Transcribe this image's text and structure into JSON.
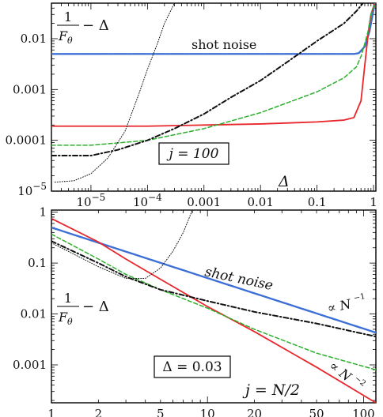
{
  "chart_data": [
    {
      "type": "line",
      "panel": "top",
      "x_scale": "log",
      "y_scale": "log",
      "xlim": [
        2e-06,
        1.1
      ],
      "ylim": [
        1e-05,
        0.05
      ],
      "xlabel": "Δ",
      "ylabel_numerator": "1",
      "ylabel_denominator": "F",
      "ylabel_subscript": "θ",
      "ylabel_suffix": "− Δ",
      "x_ticks": [
        {
          "value": 1e-05,
          "base": "10",
          "exp": "−5"
        },
        {
          "value": 0.0001,
          "base": "10",
          "exp": "−4"
        },
        {
          "value": 0.001,
          "label": "0.001"
        },
        {
          "value": 0.01,
          "label": "0.01"
        },
        {
          "value": 0.1,
          "label": "0.1"
        },
        {
          "value": 1,
          "label": "1"
        }
      ],
      "y_ticks": [
        {
          "value": 0.01,
          "label": "0.01"
        },
        {
          "value": 0.001,
          "label": "0.001"
        },
        {
          "value": 0.0001,
          "label": "0.0001"
        },
        {
          "value": 1e-05,
          "base": "10",
          "exp": "−5"
        }
      ],
      "annotations": [
        {
          "text": "shot noise"
        },
        {
          "text": "j = 100",
          "boxed": true
        }
      ],
      "series": [
        {
          "style": "dotted-blue",
          "color": "#3c6fd6",
          "x": [
            2e-06,
            0.001,
            0.1,
            0.45,
            0.55,
            0.7,
            0.85,
            1.05
          ],
          "y": [
            0.005,
            0.005,
            0.005,
            0.005,
            0.0052,
            0.007,
            0.014,
            0.05
          ]
        },
        {
          "style": "solid-red",
          "color": "#e8262b",
          "x": [
            2e-06,
            1e-05,
            0.0001,
            0.001,
            0.01,
            0.1,
            0.3,
            0.45,
            0.6,
            0.7,
            0.8,
            0.9,
            1.05
          ],
          "y": [
            0.00019,
            0.00019,
            0.00019,
            0.0002,
            0.00021,
            0.00023,
            0.00025,
            0.00028,
            0.0006,
            0.003,
            0.012,
            0.03,
            0.05
          ]
        },
        {
          "style": "dashed-green",
          "color": "#2eb02e",
          "x": [
            2e-06,
            1e-05,
            0.0001,
            0.001,
            0.01,
            0.1,
            0.3,
            0.5,
            0.6,
            0.7,
            0.8,
            0.9,
            1.05
          ],
          "y": [
            8e-05,
            8e-05,
            0.0001,
            0.00017,
            0.00035,
            0.0009,
            0.0017,
            0.0028,
            0.0045,
            0.008,
            0.014,
            0.03,
            0.05
          ]
        },
        {
          "style": "dashdot-black",
          "color": "#111111",
          "x": [
            2e-06,
            1e-05,
            3e-05,
            0.0001,
            0.0003,
            0.001,
            0.003,
            0.01,
            0.03,
            0.1,
            0.3,
            0.5,
            0.65
          ],
          "y": [
            5e-05,
            5e-05,
            6.5e-05,
            0.0001,
            0.00017,
            0.00033,
            0.0007,
            0.0015,
            0.0035,
            0.009,
            0.02,
            0.035,
            0.05
          ]
        },
        {
          "style": "dotted-black",
          "color": "#111111",
          "x": [
            2.3e-06,
            5e-06,
            1e-05,
            2e-05,
            4e-05,
            7e-05,
            0.0001,
            0.00015,
            0.0002,
            0.0003
          ],
          "y": [
            1.5e-05,
            1.6e-05,
            2.2e-05,
            4.5e-05,
            0.00015,
            0.0008,
            0.0025,
            0.008,
            0.02,
            0.05
          ]
        }
      ]
    },
    {
      "type": "line",
      "panel": "bottom",
      "x_scale": "log",
      "y_scale": "log",
      "xlim": [
        1,
        120
      ],
      "ylim": [
        0.00018,
        1.1
      ],
      "xlabel": "j = N/2",
      "ylabel_numerator": "1",
      "ylabel_denominator": "F",
      "ylabel_subscript": "θ",
      "ylabel_suffix": "− Δ",
      "x_ticks": [
        {
          "value": 1,
          "label": "1"
        },
        {
          "value": 2,
          "label": "2"
        },
        {
          "value": 5,
          "label": "5"
        },
        {
          "value": 10,
          "label": "10"
        },
        {
          "value": 20,
          "label": "20"
        },
        {
          "value": 50,
          "label": "50"
        },
        {
          "value": 100,
          "label": "100"
        }
      ],
      "y_ticks": [
        {
          "value": 1,
          "label": "1"
        },
        {
          "value": 0.1,
          "label": "0.1"
        },
        {
          "value": 0.01,
          "label": "0.01"
        },
        {
          "value": 0.001,
          "label": "0.001"
        }
      ],
      "annotations": [
        {
          "text": "shot noise"
        },
        {
          "text": "∝ N",
          "exp": "−1"
        },
        {
          "text": "∝ N",
          "exp": "−2"
        },
        {
          "text": "Δ = 0.03",
          "boxed": true
        }
      ],
      "series": [
        {
          "style": "dotted-blue",
          "color": "#3c6fd6",
          "x": [
            1,
            120
          ],
          "y": [
            0.5,
            0.0043
          ]
        },
        {
          "style": "solid-red",
          "color": "#e8262b",
          "x": [
            1,
            2,
            3,
            5,
            10,
            20,
            50,
            120
          ],
          "y": [
            0.75,
            0.26,
            0.12,
            0.048,
            0.014,
            0.0045,
            0.0009,
            0.00018
          ]
        },
        {
          "style": "dashed-green",
          "color": "#2eb02e",
          "x": [
            1,
            2,
            3,
            5,
            10,
            20,
            50,
            120
          ],
          "y": [
            0.37,
            0.12,
            0.06,
            0.03,
            0.013,
            0.005,
            0.0017,
            0.0008
          ]
        },
        {
          "style": "dashdot-black",
          "color": "#111111",
          "x": [
            1,
            2,
            3,
            5,
            10,
            20,
            50,
            120
          ],
          "y": [
            0.27,
            0.1,
            0.054,
            0.03,
            0.018,
            0.011,
            0.0065,
            0.0036
          ]
        },
        {
          "style": "dotted-black",
          "color": "#111111",
          "x": [
            1,
            2,
            3,
            4,
            5,
            6,
            7,
            8
          ],
          "y": [
            0.25,
            0.085,
            0.05,
            0.05,
            0.08,
            0.17,
            0.4,
            1.1
          ]
        }
      ]
    }
  ]
}
